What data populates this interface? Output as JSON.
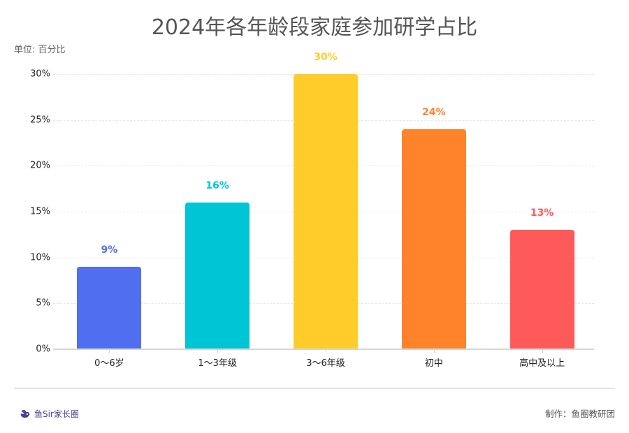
{
  "header": {
    "title": "2024年各年龄段家庭参加研学占比",
    "unit": "单位: 百分比"
  },
  "chart_data": {
    "type": "bar",
    "title": "2024年各年龄段家庭参加研学占比",
    "subtitle": "单位: 百分比",
    "xlabel": "",
    "ylabel": "百分比",
    "categories": [
      "0～6岁",
      "1～3年级",
      "3～6年级",
      "初中",
      "高中及以上"
    ],
    "values": [
      9,
      16,
      30,
      24,
      13
    ],
    "value_labels": [
      "9%",
      "16%",
      "30%",
      "24%",
      "13%"
    ],
    "colors": [
      "#4f6ff0",
      "#00c5d4",
      "#ffcc29",
      "#ff832b",
      "#ff5a5a"
    ],
    "ylim": [
      0,
      30
    ],
    "yticks": [
      "0%",
      "5%",
      "10%",
      "15%",
      "20%",
      "25%",
      "30%"
    ],
    "grid": true,
    "legend": null
  },
  "footer": {
    "brand_name": "鱼Sir家长圈",
    "credit": "制作：鱼圈教研团"
  }
}
